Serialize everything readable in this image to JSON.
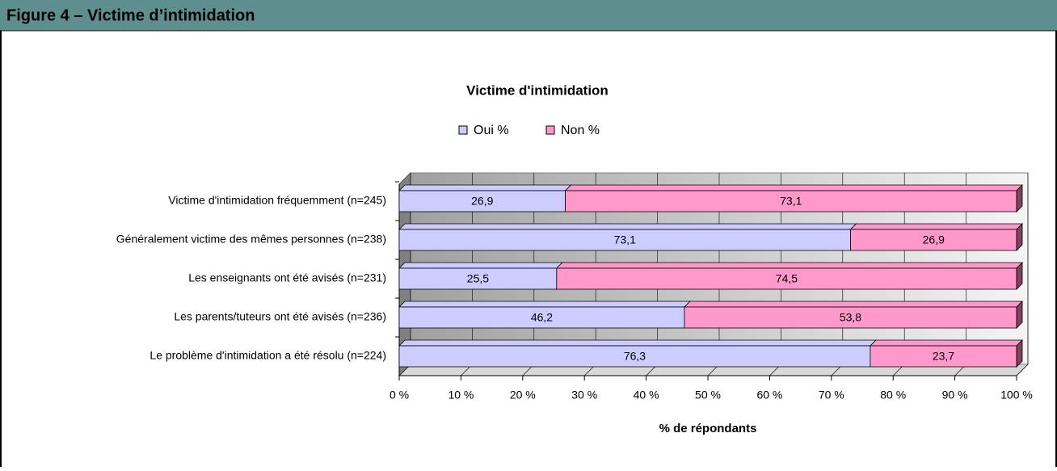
{
  "header": {
    "title": "Figure 4 – Victime d’intimidation"
  },
  "chart_data": {
    "type": "bar",
    "orientation": "horizontal",
    "stacked": true,
    "title": "Victime d'intimidation",
    "x_label": "% de répondants",
    "categories": [
      "Victime d'intimidation fréquemment (n=245)",
      "Généralement victime des mêmes personnes (n=238)",
      "Les enseignants ont été avisés (n=231)",
      "Les parents/tuteurs ont été avisés (n=236)",
      "Le problème d'intimidation a été résolu (n=224)"
    ],
    "series": [
      {
        "name": "Oui %",
        "color": "#ccccff",
        "values": [
          26.9,
          73.1,
          25.5,
          46.2,
          76.3
        ],
        "value_labels": [
          "26,9",
          "73,1",
          "25,5",
          "46,2",
          "76,3"
        ]
      },
      {
        "name": "Non %",
        "color": "#ff99cc",
        "values": [
          73.1,
          26.9,
          74.5,
          53.8,
          23.7
        ],
        "value_labels": [
          "73,1",
          "26,9",
          "74,5",
          "53,8",
          "23,7"
        ]
      }
    ],
    "xlim": [
      0,
      100
    ],
    "xticks": [
      {
        "value": 0,
        "label": "0 %"
      },
      {
        "value": 10,
        "label": "10 %"
      },
      {
        "value": 20,
        "label": "20 %"
      },
      {
        "value": 30,
        "label": "30 %"
      },
      {
        "value": 40,
        "label": "40 %"
      },
      {
        "value": 50,
        "label": "50 %"
      },
      {
        "value": 60,
        "label": "60 %"
      },
      {
        "value": 70,
        "label": "70 %"
      },
      {
        "value": 80,
        "label": "80 %"
      },
      {
        "value": 90,
        "label": "90 %"
      },
      {
        "value": 100,
        "label": "100 %"
      }
    ],
    "grid": true,
    "legend": "top"
  }
}
